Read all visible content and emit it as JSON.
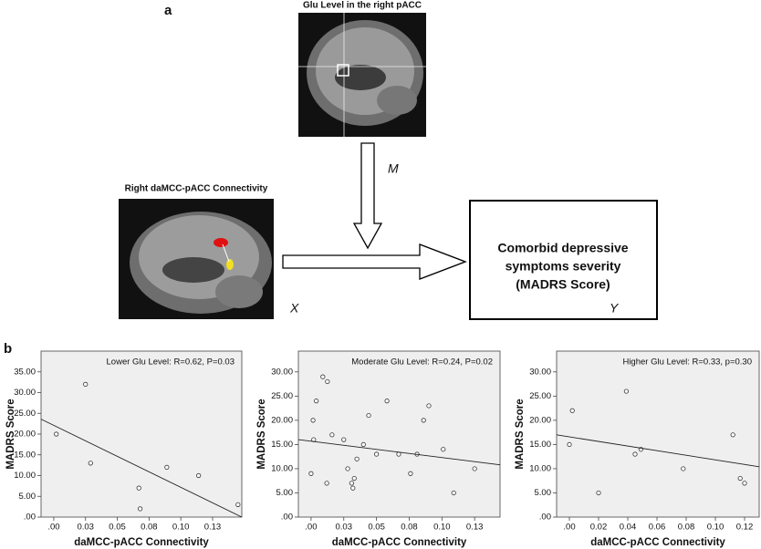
{
  "panel_a": {
    "label": "a",
    "mediator_title": "Glu Level in the right pACC",
    "mediator_symbol": "M",
    "x_title": "Right daMCC-pACC Connectivity",
    "x_symbol": "X",
    "outcome": [
      "Comorbid depressive",
      "symptoms severity",
      "(MADRS Score)"
    ],
    "y_symbol": "Y"
  },
  "panel_b_label": "b",
  "chart_data": [
    {
      "type": "scatter",
      "annotation": "Lower Glu Level: R=0.62, P=0.03",
      "x_label": "daMCC-pACC Connectivity",
      "y_label": "MADRS Score",
      "x": [
        0.002,
        0.025,
        0.029,
        0.067,
        0.068,
        0.089,
        0.114,
        0.145
      ],
      "values": [
        20,
        32,
        13,
        7,
        2,
        12,
        10,
        3
      ],
      "fit": {
        "x": [
          -0.01,
          0.148
        ],
        "y": [
          23.6,
          0
        ]
      },
      "xlim": [
        -0.01,
        0.148
      ],
      "ylim": [
        0,
        40
      ],
      "xticks": [
        {
          "value": 0,
          "label": ".00"
        },
        {
          "value": 0.025,
          "label": "0.03"
        },
        {
          "value": 0.05,
          "label": "0.05"
        },
        {
          "value": 0.075,
          "label": "0.08"
        },
        {
          "value": 0.1,
          "label": "0.10"
        },
        {
          "value": 0.125,
          "label": "0.13"
        }
      ],
      "yticks": [
        {
          "value": 0,
          "label": ".00"
        },
        {
          "value": 5,
          "label": "5.00"
        },
        {
          "value": 10,
          "label": "10.00"
        },
        {
          "value": 15,
          "label": "15.00"
        },
        {
          "value": 20,
          "label": "20.00"
        },
        {
          "value": 25,
          "label": "25.00"
        },
        {
          "value": 30,
          "label": "30.00"
        },
        {
          "value": 35,
          "label": "35.00"
        }
      ]
    },
    {
      "type": "scatter",
      "annotation": "Moderate Glu Level: R=0.24, P=0.02",
      "x_label": "daMCC-pACC Connectivity",
      "y_label": "MADRS Score",
      "x": [
        0,
        0.0015,
        0.002,
        0.004,
        0.009,
        0.0125,
        0.012,
        0.016,
        0.025,
        0.028,
        0.031,
        0.033,
        0.035,
        0.032,
        0.04,
        0.044,
        0.05,
        0.058,
        0.067,
        0.076,
        0.081,
        0.086,
        0.09,
        0.101,
        0.109,
        0.125
      ],
      "values": [
        9,
        20,
        16,
        24,
        29,
        28,
        7,
        17,
        16,
        10,
        7,
        8,
        12,
        6,
        15,
        21,
        13,
        24,
        13,
        9,
        13,
        20,
        23,
        14,
        5,
        10
      ],
      "fit": {
        "x": [
          -0.0097,
          0.1444
        ],
        "y": [
          16,
          10.8
        ]
      },
      "xlim": [
        -0.0097,
        0.1444
      ],
      "ylim": [
        0,
        34.3
      ],
      "xticks": [
        {
          "value": 0,
          "label": ".00"
        },
        {
          "value": 0.025,
          "label": "0.03"
        },
        {
          "value": 0.05,
          "label": "0.05"
        },
        {
          "value": 0.075,
          "label": "0.08"
        },
        {
          "value": 0.1,
          "label": "0.10"
        },
        {
          "value": 0.125,
          "label": "0.13"
        }
      ],
      "yticks": [
        {
          "value": 0,
          "label": ".00"
        },
        {
          "value": 5,
          "label": "5.00"
        },
        {
          "value": 10,
          "label": "10.00"
        },
        {
          "value": 15,
          "label": "15.00"
        },
        {
          "value": 20,
          "label": "20.00"
        },
        {
          "value": 25,
          "label": "25.00"
        },
        {
          "value": 30,
          "label": "30.00"
        }
      ]
    },
    {
      "type": "scatter",
      "annotation": "Higher Glu Level: R=0.33, p=0.30",
      "x_label": "daMCC-pACC Connectivity",
      "y_label": "MADRS Score",
      "x": [
        0,
        0.002,
        0.02,
        0.039,
        0.045,
        0.049,
        0.078,
        0.112,
        0.117,
        0.12
      ],
      "values": [
        15,
        22,
        5,
        26,
        13,
        14,
        10,
        17,
        8,
        7
      ],
      "fit": {
        "x": [
          -0.00875,
          0.13
        ],
        "y": [
          17,
          10.4
        ]
      },
      "xlim": [
        -0.00875,
        0.13
      ],
      "ylim": [
        0,
        34.3
      ],
      "xticks": [
        {
          "value": 0,
          "label": ".00"
        },
        {
          "value": 0.02,
          "label": "0.02"
        },
        {
          "value": 0.04,
          "label": "0.04"
        },
        {
          "value": 0.06,
          "label": "0.06"
        },
        {
          "value": 0.08,
          "label": "0.08"
        },
        {
          "value": 0.1,
          "label": "0.10"
        },
        {
          "value": 0.12,
          "label": "0.12"
        }
      ],
      "yticks": [
        {
          "value": 0,
          "label": ".00"
        },
        {
          "value": 5,
          "label": "5.00"
        },
        {
          "value": 10,
          "label": "10.00"
        },
        {
          "value": 15,
          "label": "15.00"
        },
        {
          "value": 20,
          "label": "20.00"
        },
        {
          "value": 25,
          "label": "25.00"
        },
        {
          "value": 30,
          "label": "30.00"
        }
      ]
    }
  ]
}
